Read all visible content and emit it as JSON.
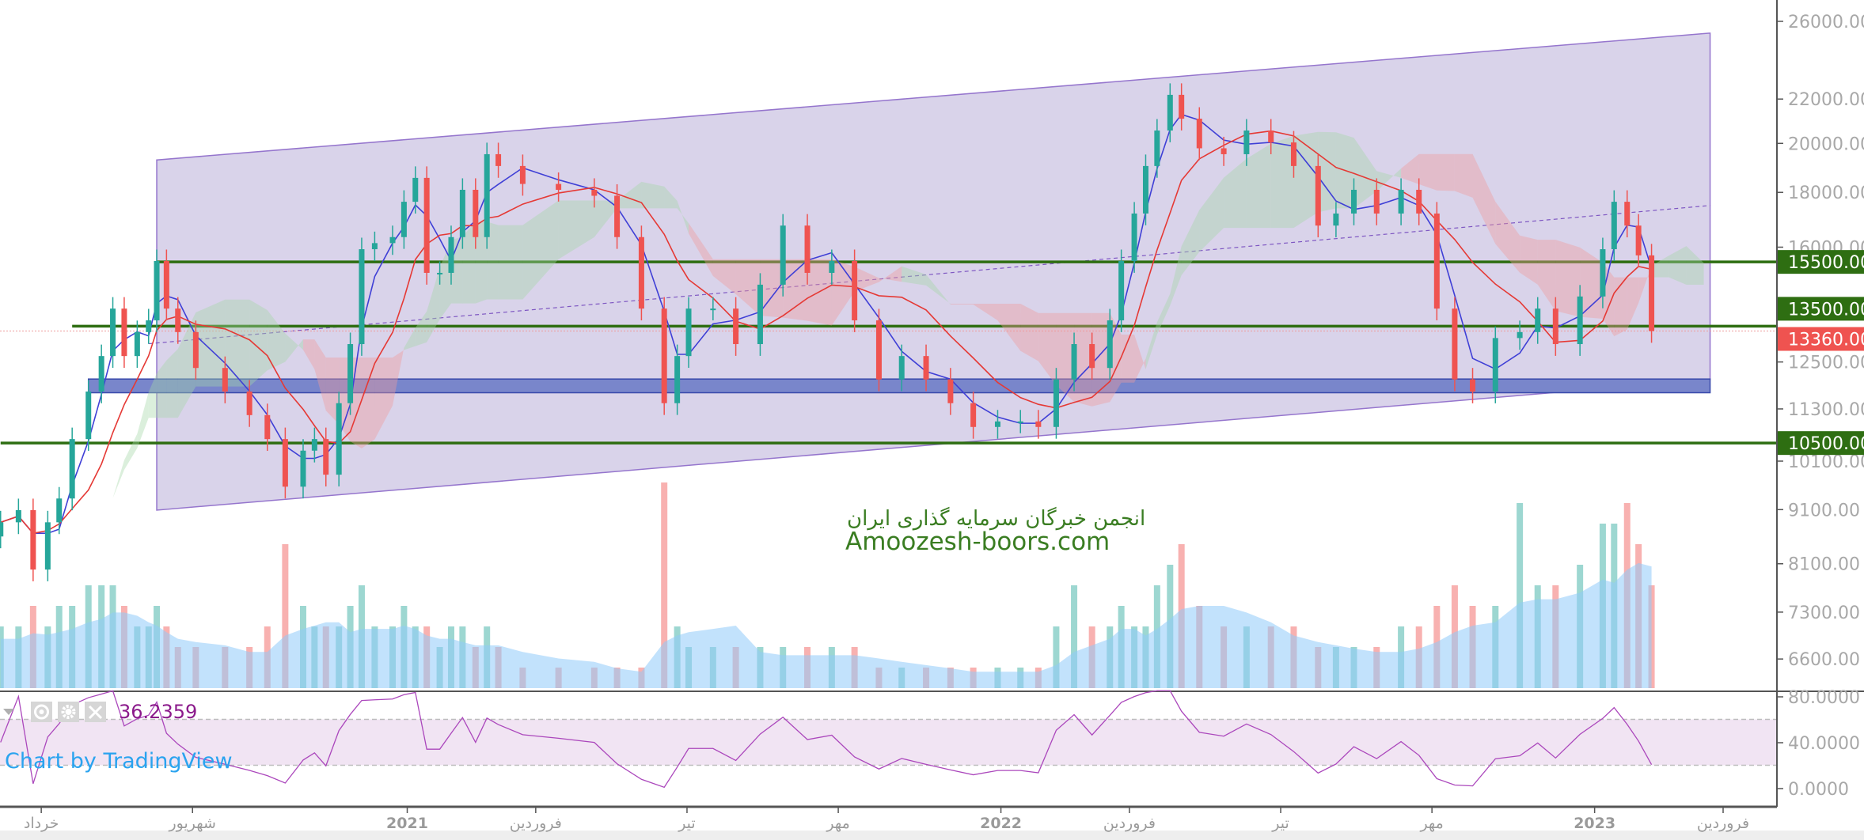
{
  "chart_data": {
    "type": "candlestick",
    "price_scale": "log",
    "grid": false,
    "price_axis": {
      "ticks": [
        26000,
        22000,
        20000,
        18000,
        16000,
        12500,
        11300,
        10100,
        9100,
        8100,
        7300,
        6600
      ],
      "tick_labels": [
        "26000.00",
        "22000.00",
        "20000.00",
        "18000.00",
        "16000.00",
        "12500.00",
        "11300.00",
        "10100.00",
        "9100.00",
        "8100.00",
        "7300.00",
        "6600.00"
      ]
    },
    "time_axis": {
      "labels": [
        {
          "date": "2020-05-21",
          "text": "خرداد"
        },
        {
          "date": "2020-08-22",
          "text": "شهریور"
        },
        {
          "date": "2021-01-01",
          "text": "2021"
        },
        {
          "date": "2021-03-21",
          "text": "فروردین"
        },
        {
          "date": "2021-06-22",
          "text": "تیر"
        },
        {
          "date": "2021-09-23",
          "text": "مهر"
        },
        {
          "date": "2022-01-01",
          "text": "2022"
        },
        {
          "date": "2022-03-21",
          "text": "فروردین"
        },
        {
          "date": "2022-06-22",
          "text": "تیر"
        },
        {
          "date": "2022-09-23",
          "text": "مهر"
        },
        {
          "date": "2023-01-01",
          "text": "2023"
        },
        {
          "date": "2023-03-21",
          "text": "فروردین"
        }
      ]
    },
    "series": [
      [
        "2020-04-26",
        8855,
        3
      ],
      [
        "2020-05-07",
        9090,
        3
      ],
      [
        "2020-05-16",
        8000,
        4
      ],
      [
        "2020-05-25",
        8855,
        3
      ],
      [
        "2020-06-01",
        9320,
        4
      ],
      [
        "2020-06-09",
        10590,
        4
      ],
      [
        "2020-06-19",
        11730,
        5
      ],
      [
        "2020-06-27",
        12660,
        5
      ],
      [
        "2020-07-04",
        14020,
        5
      ],
      [
        "2020-07-11",
        12660,
        4
      ],
      [
        "2020-07-19",
        13330,
        3
      ],
      [
        "2020-07-26",
        13670,
        3
      ],
      [
        "2020-07-31",
        15530,
        4
      ],
      [
        "2020-08-06",
        14020,
        3
      ],
      [
        "2020-08-13",
        13330,
        2
      ],
      [
        "2020-08-24",
        12340,
        2
      ],
      [
        "2020-09-11",
        11730,
        2
      ],
      [
        "2020-09-26",
        11150,
        2
      ],
      [
        "2020-10-07",
        10590,
        3
      ],
      [
        "2020-10-18",
        9560,
        7
      ],
      [
        "2020-10-29",
        10330,
        4
      ],
      [
        "2020-11-05",
        10590,
        3
      ],
      [
        "2020-11-12",
        9810,
        3
      ],
      [
        "2020-11-20",
        11440,
        3
      ],
      [
        "2020-11-27",
        12990,
        4
      ],
      [
        "2020-12-04",
        15930,
        5
      ],
      [
        "2020-12-12",
        16140,
        3
      ],
      [
        "2020-12-23",
        16350,
        3
      ],
      [
        "2020-12-30",
        17640,
        4
      ],
      [
        "2021-01-06",
        18570,
        3
      ],
      [
        "2021-01-13",
        15140,
        3
      ],
      [
        "2021-01-21",
        15140,
        2
      ],
      [
        "2021-01-28",
        16350,
        3
      ],
      [
        "2021-02-04",
        18100,
        3
      ],
      [
        "2021-02-12",
        16350,
        2
      ],
      [
        "2021-02-19",
        19540,
        3
      ],
      [
        "2021-02-26",
        19050,
        2
      ],
      [
        "2021-03-13",
        18330,
        1
      ],
      [
        "2021-04-04",
        18100,
        1
      ],
      [
        "2021-04-26",
        17870,
        1
      ],
      [
        "2021-05-10",
        16350,
        1
      ],
      [
        "2021-05-25",
        14020,
        1
      ],
      [
        "2021-06-08",
        11440,
        10
      ],
      [
        "2021-06-16",
        12660,
        3
      ],
      [
        "2021-06-23",
        14020,
        2
      ],
      [
        "2021-07-08",
        14020,
        2
      ],
      [
        "2021-07-22",
        12990,
        2
      ],
      [
        "2021-08-06",
        14760,
        2
      ],
      [
        "2021-08-20",
        16760,
        2
      ],
      [
        "2021-09-04",
        15140,
        2
      ],
      [
        "2021-09-19",
        15530,
        2
      ],
      [
        "2021-10-03",
        13670,
        2
      ],
      [
        "2021-10-18",
        12040,
        1
      ],
      [
        "2021-11-01",
        12660,
        1
      ],
      [
        "2021-11-16",
        12040,
        1
      ],
      [
        "2021-12-01",
        11440,
        1
      ],
      [
        "2021-12-15",
        10870,
        1
      ],
      [
        "2021-12-30",
        11000,
        1
      ],
      [
        "2022-01-13",
        11000,
        1
      ],
      [
        "2022-01-24",
        10870,
        1
      ],
      [
        "2022-02-04",
        12040,
        3
      ],
      [
        "2022-02-15",
        12990,
        5
      ],
      [
        "2022-02-26",
        12340,
        3
      ],
      [
        "2022-03-09",
        13670,
        3
      ],
      [
        "2022-03-16",
        15530,
        4
      ],
      [
        "2022-03-24",
        17200,
        3
      ],
      [
        "2022-03-31",
        19050,
        3
      ],
      [
        "2022-04-07",
        20560,
        5
      ],
      [
        "2022-04-15",
        22200,
        6
      ],
      [
        "2022-04-22",
        21090,
        7
      ],
      [
        "2022-05-03",
        19790,
        4
      ],
      [
        "2022-05-18",
        19540,
        3
      ],
      [
        "2022-06-01",
        20560,
        3
      ],
      [
        "2022-06-16",
        20040,
        3
      ],
      [
        "2022-06-30",
        19050,
        3
      ],
      [
        "2022-07-15",
        16760,
        2
      ],
      [
        "2022-07-26",
        17200,
        2
      ],
      [
        "2022-08-06",
        18100,
        2
      ],
      [
        "2022-08-20",
        17200,
        2
      ],
      [
        "2022-09-04",
        18100,
        3
      ],
      [
        "2022-09-15",
        17200,
        3
      ],
      [
        "2022-09-26",
        14020,
        4
      ],
      [
        "2022-10-07",
        12040,
        5
      ],
      [
        "2022-10-18",
        11730,
        4
      ],
      [
        "2022-11-01",
        13160,
        4
      ],
      [
        "2022-11-16",
        13330,
        9
      ],
      [
        "2022-11-27",
        14020,
        5
      ],
      [
        "2022-12-08",
        12990,
        5
      ],
      [
        "2022-12-23",
        14390,
        6
      ],
      [
        "2023-01-06",
        15930,
        8
      ],
      [
        "2023-01-13",
        17640,
        8
      ],
      [
        "2023-01-21",
        16760,
        9
      ],
      [
        "2023-01-28",
        15720,
        7
      ],
      [
        "2023-02-05",
        13360,
        5
      ]
    ],
    "series_columns": [
      "date",
      "close",
      "volume"
    ],
    "colors": {
      "up": "#26a69a",
      "down": "#ef5350",
      "ma_fast": "#3f3fd6",
      "ma_slow": "#e53935",
      "volume_ma": "#64b5f6",
      "rsi": "#ab47bc",
      "channel": "#b39ddb",
      "support_lines": "#2e6e12",
      "zone": "#5c6bc0"
    },
    "drawings": {
      "channel": {
        "start": "2020-07-31",
        "end": "2023-03-13",
        "top": [
          19300,
          25350
        ],
        "bottom": [
          9090,
          12040
        ]
      },
      "channel_midline": {
        "start": "2020-07-26",
        "end": "2023-03-13",
        "prices": [
          13000,
          17500
        ]
      },
      "horizontal_lines": [
        {
          "price": 15500,
          "start": "2020-07-31",
          "label": "15500.00"
        },
        {
          "price": 13500,
          "start": "2020-06-09",
          "label": "13500.00"
        },
        {
          "price": 10500,
          "start": "2020-04-26",
          "label": "10500.00"
        }
      ],
      "zone": {
        "start": "2020-06-19",
        "end": "2023-03-13",
        "low": 11700,
        "high": 12050
      }
    },
    "last_price": {
      "value": 13360,
      "label": "13360.00"
    },
    "rsi": {
      "current_label": "36.2359",
      "upper": 70,
      "lower": 30,
      "ticks": [
        "80.0000",
        "40.0000",
        "0.0000"
      ],
      "tick_values": [
        80,
        40,
        0
      ]
    }
  },
  "watermark": {
    "line1": "انجمن خبرگان سرمایه گذاری ایران",
    "line2": "Amoozesh-boors.com"
  },
  "branding": {
    "text": "Chart by TradingView"
  },
  "icons": [
    "collapse-arrow-icon",
    "eye-icon",
    "gear-icon",
    "close-icon"
  ]
}
